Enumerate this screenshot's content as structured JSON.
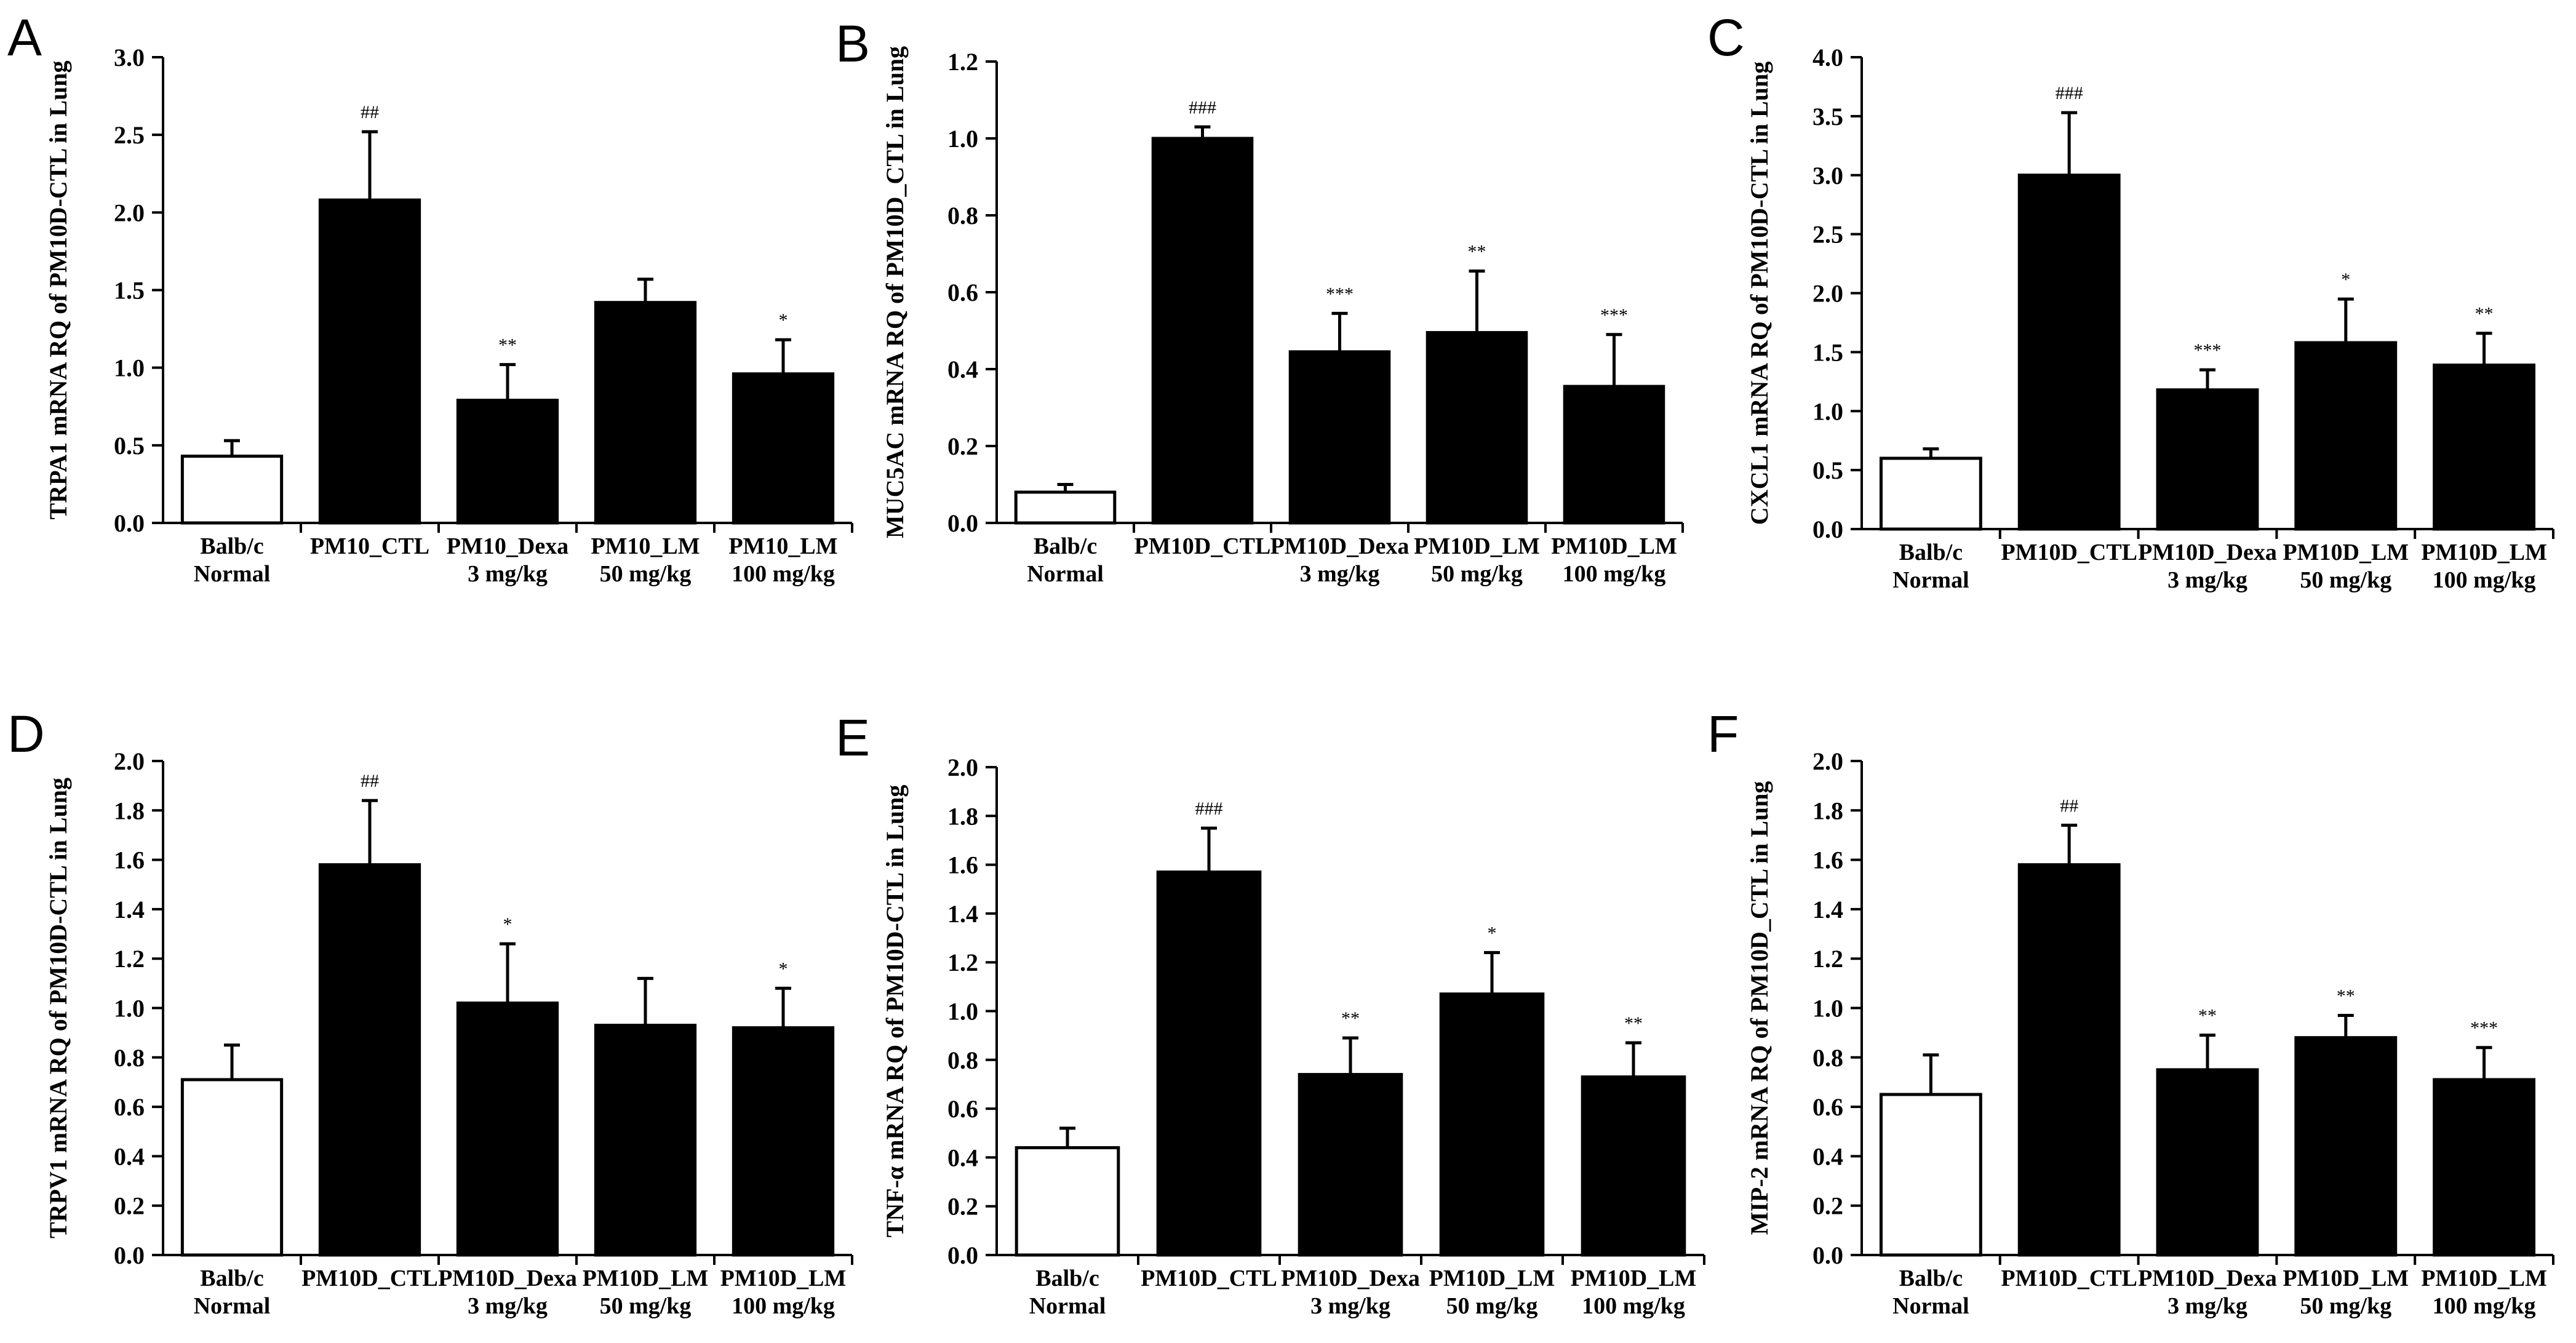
{
  "figure": {
    "colors": {
      "filled_bar": "#000000",
      "normal_bar": "#ffffff",
      "axis": "#000000"
    }
  },
  "chart_data": [
    {
      "panel": "A",
      "type": "bar",
      "ylabel": "TRPA1 mRNA RQ of PM10D-CTL in Lung",
      "ylim": [
        0,
        3.0
      ],
      "yticks": [
        "0.0",
        "0.5",
        "1.0",
        "1.5",
        "2.0",
        "2.5",
        "3.0"
      ],
      "categories": [
        [
          "Balb/c",
          "Normal"
        ],
        [
          "PM10_CTL"
        ],
        [
          "PM10_Dexa",
          "3 mg/kg"
        ],
        [
          "PM10_LM",
          "50 mg/kg"
        ],
        [
          "PM10_LM",
          "100 mg/kg"
        ]
      ],
      "values": [
        0.43,
        2.08,
        0.79,
        1.42,
        0.96
      ],
      "errors": [
        0.1,
        0.44,
        0.23,
        0.15,
        0.22
      ],
      "significance": [
        "",
        "##",
        "**",
        "",
        "*"
      ],
      "bar_colors": [
        "#ffffff",
        "#000000",
        "#000000",
        "#000000",
        "#000000"
      ]
    },
    {
      "panel": "B",
      "type": "bar",
      "ylabel": "MUC5AC mRNA RQ of PM10D_CTL in Lung",
      "ylim": [
        0,
        1.2
      ],
      "yticks": [
        "0.0",
        "0.2",
        "0.4",
        "0.6",
        "0.8",
        "1.0",
        "1.2"
      ],
      "categories": [
        [
          "Balb/c",
          "Normal"
        ],
        [
          "PM10D_CTL"
        ],
        [
          "PM10D_Dexa",
          "3 mg/kg"
        ],
        [
          "PM10D_LM",
          "50 mg/kg"
        ],
        [
          "PM10D_LM",
          "100 mg/kg"
        ]
      ],
      "values": [
        0.08,
        1.0,
        0.445,
        0.495,
        0.355
      ],
      "errors": [
        0.02,
        0.03,
        0.1,
        0.16,
        0.135
      ],
      "significance": [
        "",
        "###",
        "***",
        "**",
        "***"
      ],
      "bar_colors": [
        "#ffffff",
        "#000000",
        "#000000",
        "#000000",
        "#000000"
      ]
    },
    {
      "panel": "C",
      "type": "bar",
      "ylabel": "CXCL1 mRNA RQ of PM10D-CTL in Lung",
      "ylim": [
        0,
        4.0
      ],
      "yticks": [
        "0.0",
        "0.5",
        "1.0",
        "1.5",
        "2.0",
        "2.5",
        "3.0",
        "3.5",
        "4.0"
      ],
      "categories": [
        [
          "Balb/c",
          "Normal"
        ],
        [
          "PM10D_CTL"
        ],
        [
          "PM10D_Dexa",
          "3 mg/kg"
        ],
        [
          "PM10D_LM",
          "50 mg/kg"
        ],
        [
          "PM10D_LM",
          "100 mg/kg"
        ]
      ],
      "values": [
        0.6,
        3.0,
        1.18,
        1.58,
        1.39
      ],
      "errors": [
        0.08,
        0.53,
        0.17,
        0.37,
        0.27
      ],
      "significance": [
        "",
        "###",
        "***",
        "*",
        "**"
      ],
      "bar_colors": [
        "#ffffff",
        "#000000",
        "#000000",
        "#000000",
        "#000000"
      ]
    },
    {
      "panel": "D",
      "type": "bar",
      "ylabel": "TRPV1 mRNA RQ of PM10D-CTL in Lung",
      "ylim": [
        0,
        2.0
      ],
      "yticks": [
        "0.0",
        "0.2",
        "0.4",
        "0.6",
        "0.8",
        "1.0",
        "1.2",
        "1.4",
        "1.6",
        "1.8",
        "2.0"
      ],
      "categories": [
        [
          "Balb/c",
          "Normal"
        ],
        [
          "PM10D_CTL"
        ],
        [
          "PM10D_Dexa",
          "3 mg/kg"
        ],
        [
          "PM10D_LM",
          "50 mg/kg"
        ],
        [
          "PM10D_LM",
          "100 mg/kg"
        ]
      ],
      "values": [
        0.71,
        1.58,
        1.02,
        0.93,
        0.92
      ],
      "errors": [
        0.14,
        0.26,
        0.24,
        0.19,
        0.16
      ],
      "significance": [
        "",
        "##",
        "*",
        "",
        "*"
      ],
      "bar_colors": [
        "#ffffff",
        "#000000",
        "#000000",
        "#000000",
        "#000000"
      ]
    },
    {
      "panel": "E",
      "type": "bar",
      "ylabel": "TNF-α mRNA RQ of PM10D-CTL in Lung",
      "ylim": [
        0,
        2.0
      ],
      "yticks": [
        "0.0",
        "0.2",
        "0.4",
        "0.6",
        "0.8",
        "1.0",
        "1.2",
        "1.4",
        "1.6",
        "1.8",
        "2.0"
      ],
      "categories": [
        [
          "Balb/c",
          "Normal"
        ],
        [
          "PM10D_CTL"
        ],
        [
          "PM10D_Dexa",
          "3 mg/kg"
        ],
        [
          "PM10D_LM",
          "50 mg/kg"
        ],
        [
          "PM10D_LM",
          "100 mg/kg"
        ]
      ],
      "values": [
        0.44,
        1.57,
        0.74,
        1.07,
        0.73
      ],
      "errors": [
        0.08,
        0.18,
        0.15,
        0.17,
        0.14
      ],
      "significance": [
        "",
        "###",
        "**",
        "*",
        "**"
      ],
      "bar_colors": [
        "#ffffff",
        "#000000",
        "#000000",
        "#000000",
        "#000000"
      ]
    },
    {
      "panel": "F",
      "type": "bar",
      "ylabel": "MIP-2 mRNA RQ of PM10D_CTL in Lung",
      "ylim": [
        0,
        2.0
      ],
      "yticks": [
        "0.0",
        "0.2",
        "0.4",
        "0.6",
        "0.8",
        "1.0",
        "1.2",
        "1.4",
        "1.6",
        "1.8",
        "2.0"
      ],
      "categories": [
        [
          "Balb/c",
          "Normal"
        ],
        [
          "PM10D_CTL"
        ],
        [
          "PM10D_Dexa",
          "3 mg/kg"
        ],
        [
          "PM10D_LM",
          "50 mg/kg"
        ],
        [
          "PM10D_LM",
          "100 mg/kg"
        ]
      ],
      "values": [
        0.65,
        1.58,
        0.75,
        0.88,
        0.71
      ],
      "errors": [
        0.16,
        0.16,
        0.14,
        0.09,
        0.13
      ],
      "significance": [
        "",
        "##",
        "**",
        "**",
        "***"
      ],
      "bar_colors": [
        "#ffffff",
        "#000000",
        "#000000",
        "#000000",
        "#000000"
      ]
    }
  ]
}
